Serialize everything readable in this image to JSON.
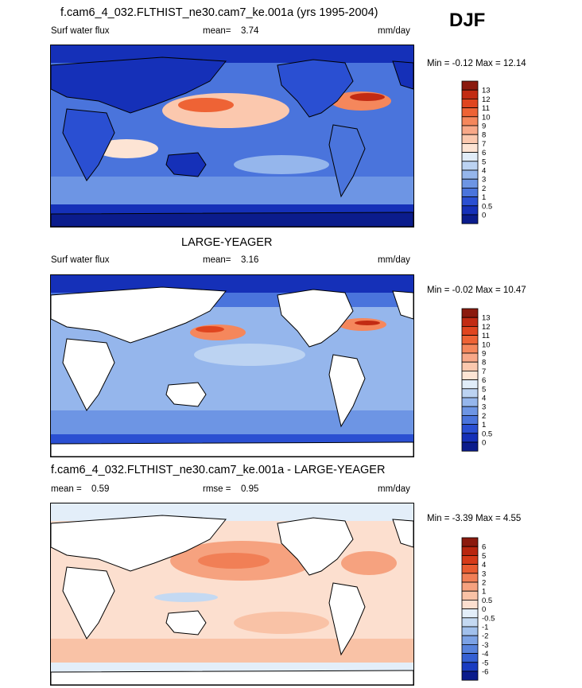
{
  "season": "DJF",
  "panels": [
    {
      "id": "model",
      "title": "f.cam6_4_032.FLTHIST_ne30.cam7_ke.001a (yrs 1995-2004)",
      "left_label": "Surf water flux",
      "center_label": "mean=",
      "center_value": "3.74",
      "units": "mm/day",
      "stats_min_label": "Min =",
      "stats_min": "-0.12",
      "stats_max_label": "Max =",
      "stats_max": "12.14",
      "land_masked": false,
      "colorbar_labels": [
        "13",
        "12",
        "11",
        "10",
        "9",
        "8",
        "7",
        "6",
        "5",
        "4",
        "3",
        "2",
        "1",
        "0.5",
        "0"
      ],
      "colorbar_colors": [
        "#8b1a0e",
        "#c22b13",
        "#e0451f",
        "#ee6335",
        "#f5875c",
        "#f8a888",
        "#fbc8ae",
        "#fde4d4",
        "#e1edf9",
        "#bcd3f2",
        "#95b6ec",
        "#6d95e4",
        "#4a74dc",
        "#2a4fd2",
        "#1530b8",
        "#0b1c8c"
      ]
    },
    {
      "id": "obs",
      "title": "LARGE-YEAGER",
      "left_label": "Surf water flux",
      "center_label": "mean=",
      "center_value": "3.16",
      "units": "mm/day",
      "stats_min_label": "Min =",
      "stats_min": "-0.02",
      "stats_max_label": "Max =",
      "stats_max": "10.47",
      "land_masked": true,
      "colorbar_labels": [
        "13",
        "12",
        "11",
        "10",
        "9",
        "8",
        "7",
        "6",
        "5",
        "4",
        "3",
        "2",
        "1",
        "0.5",
        "0"
      ],
      "colorbar_colors": [
        "#8b1a0e",
        "#c22b13",
        "#e0451f",
        "#ee6335",
        "#f5875c",
        "#f8a888",
        "#fbc8ae",
        "#fde4d4",
        "#e1edf9",
        "#bcd3f2",
        "#95b6ec",
        "#6d95e4",
        "#4a74dc",
        "#2a4fd2",
        "#1530b8",
        "#0b1c8c"
      ]
    },
    {
      "id": "diff",
      "title": "f.cam6_4_032.FLTHIST_ne30.cam7_ke.001a - LARGE-YEAGER",
      "left_label": "mean =",
      "left_value": "0.59",
      "center_label": "rmse =",
      "center_value": "0.95",
      "units": "mm/day",
      "stats_min_label": "Min =",
      "stats_min": "-3.39",
      "stats_max_label": "Max =",
      "stats_max": "4.55",
      "land_masked": true,
      "colorbar_labels": [
        "6",
        "5",
        "4",
        "3",
        "2",
        "1",
        "0.5",
        "0",
        "-0.5",
        "-1",
        "-2",
        "-3",
        "-4",
        "-5",
        "-6"
      ],
      "colorbar_colors": [
        "#8b1a0e",
        "#b8260f",
        "#d53a18",
        "#e85b30",
        "#f17f56",
        "#f6a27f",
        "#f9c2a6",
        "#fcdfcf",
        "#e3eef9",
        "#c4d9f2",
        "#a1c0ec",
        "#7ca2e5",
        "#5883dc",
        "#3560d3",
        "#1a3cc1",
        "#0b1c8c"
      ]
    }
  ],
  "chart_data": [
    {
      "type": "heatmap",
      "title": "f.cam6_4_032.FLTHIST_ne30.cam7_ke.001a (yrs 1995-2004)",
      "variable": "Surf water flux",
      "units": "mm/day",
      "mean": 3.74,
      "min": -0.12,
      "max": 12.14,
      "levels": [
        0,
        0.5,
        1,
        2,
        3,
        4,
        5,
        6,
        7,
        8,
        9,
        10,
        11,
        12,
        13
      ]
    },
    {
      "type": "heatmap",
      "title": "LARGE-YEAGER",
      "variable": "Surf water flux",
      "units": "mm/day",
      "mean": 3.16,
      "min": -0.02,
      "max": 10.47,
      "levels": [
        0,
        0.5,
        1,
        2,
        3,
        4,
        5,
        6,
        7,
        8,
        9,
        10,
        11,
        12,
        13
      ]
    },
    {
      "type": "heatmap",
      "title": "f.cam6_4_032.FLTHIST_ne30.cam7_ke.001a - LARGE-YEAGER",
      "units": "mm/day",
      "mean": 0.59,
      "rmse": 0.95,
      "min": -3.39,
      "max": 4.55,
      "levels": [
        -6,
        -5,
        -4,
        -3,
        -2,
        -1,
        -0.5,
        0,
        0.5,
        1,
        2,
        3,
        4,
        5,
        6
      ]
    }
  ]
}
